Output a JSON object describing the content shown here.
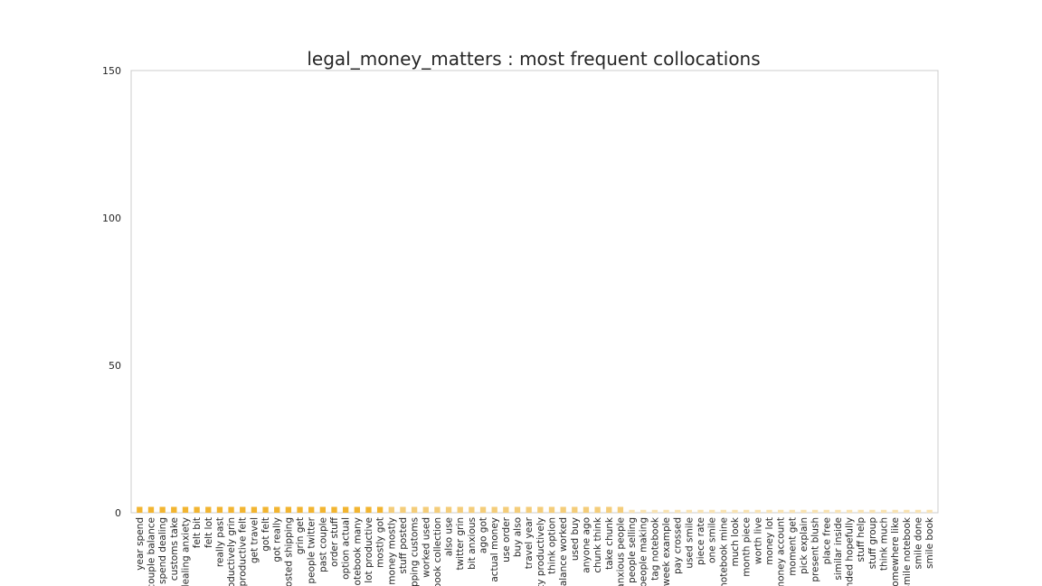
{
  "chart_data": {
    "type": "bar",
    "title": "legal_money_matters : most frequent collocations",
    "xlabel": "",
    "ylabel": "",
    "ylim": [
      0,
      150
    ],
    "yticks": [
      0,
      50,
      100,
      150
    ],
    "grid": false,
    "legend": "none",
    "colors": {
      "high": "#f2b531",
      "mid": "#f4cd7a",
      "low": "#f8e2b2",
      "axis_frame": "#cccccc",
      "text": "#262626"
    },
    "categories": [
      "year spend",
      "couple balance",
      "spend dealing",
      "customs take",
      "dealing anxiety",
      "felt bit",
      "felt lot",
      "really past",
      "productively grin",
      "productive felt",
      "get travel",
      "got felt",
      "got really",
      "posted shipping",
      "grin get",
      "people twitter",
      "past couple",
      "order stuff",
      "option actual",
      "notebook many",
      "lot productive",
      "mostly got",
      "money mostly",
      "stuff posted",
      "shipping customs",
      "worked used",
      "book collection",
      "also use",
      "twitter grin",
      "bit anxious",
      "ago got",
      "actual money",
      "use order",
      "buy also",
      "travel year",
      "anxiety productively",
      "think option",
      "balance worked",
      "used buy",
      "anyone ago",
      "chunk think",
      "take chunk",
      "anxious people",
      "people selling",
      "people making",
      "tag notebook",
      "week example",
      "pay crossed",
      "used smile",
      "piece rate",
      "one smile",
      "notebook mine",
      "much look",
      "month piece",
      "worth live",
      "money lot",
      "money account",
      "moment get",
      "pick explain",
      "present blush",
      "place free",
      "similar inside",
      "intended hopefully",
      "stuff help",
      "stuff group",
      "think much",
      "somewhere like",
      "smile notebook",
      "smile done",
      "smile book"
    ],
    "values": [
      2,
      2,
      2,
      2,
      2,
      2,
      2,
      2,
      2,
      2,
      2,
      2,
      2,
      2,
      2,
      2,
      2,
      2,
      2,
      2,
      2,
      2,
      2,
      2,
      2,
      2,
      2,
      2,
      2,
      2,
      2,
      2,
      2,
      2,
      2,
      2,
      2,
      2,
      2,
      2,
      2,
      2,
      2,
      1,
      1,
      1,
      1,
      1,
      1,
      1,
      1,
      1,
      1,
      1,
      1,
      1,
      1,
      1,
      1,
      1,
      1,
      1,
      1,
      1,
      1,
      1,
      1,
      1,
      1,
      1
    ]
  }
}
